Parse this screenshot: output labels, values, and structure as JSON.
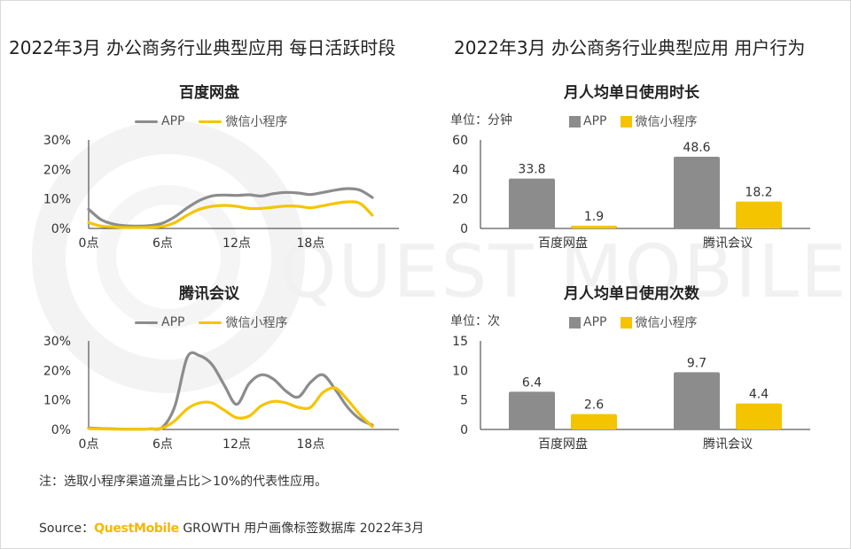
{
  "titles": {
    "left": "2022年3月 办公商务行业典型应用 每日活跃时段",
    "right": "2022年3月 办公商务行业典型应用 用户行为"
  },
  "legend": {
    "app": "APP",
    "mini": "微信小程序"
  },
  "colors": {
    "app": "#8c8c8c",
    "mini": "#f5c400",
    "axis": "#333333"
  },
  "watermark": "QUEST MOBILE",
  "units": {
    "duration": "单位：分钟",
    "count": "单位：次"
  },
  "note": "注：选取小程序渠道流量占比＞10%的代表性应用。",
  "source": {
    "prefix": "Source：",
    "brand": "QuestMobile",
    "text": "GROWTH 用户画像标签数据库 2022年3月"
  },
  "chart_data": [
    {
      "type": "line",
      "title": "百度网盘",
      "x": [
        0,
        1,
        2,
        3,
        4,
        5,
        6,
        7,
        8,
        9,
        10,
        11,
        12,
        13,
        14,
        15,
        16,
        17,
        18,
        19,
        20,
        21,
        22,
        23
      ],
      "x_tick_labels": [
        "0点",
        "6点",
        "12点",
        "18点"
      ],
      "x_tick_positions": [
        0,
        6,
        12,
        18
      ],
      "y_ticks": [
        "0%",
        "10%",
        "20%",
        "30%"
      ],
      "ylim": [
        0,
        30
      ],
      "series": [
        {
          "name": "APP",
          "values": [
            6.5,
            3.0,
            1.5,
            0.9,
            0.8,
            1.0,
            1.8,
            4.0,
            7.0,
            9.5,
            11.0,
            11.3,
            11.2,
            11.4,
            11.0,
            11.8,
            12.2,
            12.0,
            11.5,
            12.2,
            13.0,
            13.5,
            13.0,
            10.5
          ]
        },
        {
          "name": "微信小程序",
          "values": [
            2.0,
            0.8,
            0.5,
            0.3,
            0.3,
            0.4,
            0.7,
            2.0,
            4.5,
            6.5,
            7.5,
            7.8,
            7.5,
            6.8,
            6.8,
            7.2,
            7.6,
            7.5,
            7.0,
            7.7,
            8.5,
            9.0,
            8.5,
            4.5
          ]
        }
      ]
    },
    {
      "type": "line",
      "title": "腾讯会议",
      "x": [
        0,
        1,
        2,
        3,
        4,
        5,
        6,
        7,
        8,
        9,
        10,
        11,
        12,
        13,
        14,
        15,
        16,
        17,
        18,
        19,
        20,
        21,
        22,
        23
      ],
      "x_tick_labels": [
        "0点",
        "6点",
        "12点",
        "18点"
      ],
      "x_tick_positions": [
        0,
        6,
        12,
        18
      ],
      "y_ticks": [
        "0%",
        "10%",
        "20%",
        "30%"
      ],
      "ylim": [
        0,
        30
      ],
      "series": [
        {
          "name": "APP",
          "values": [
            0.5,
            0.3,
            0.2,
            0.1,
            0.1,
            0.2,
            0.8,
            8.0,
            24.5,
            25.0,
            22.0,
            15.0,
            8.5,
            15.5,
            18.5,
            17.0,
            13.0,
            11.0,
            16.0,
            18.5,
            13.5,
            7.5,
            3.5,
            1.5
          ]
        },
        {
          "name": "微信小程序",
          "values": [
            0.3,
            0.2,
            0.1,
            0.1,
            0.1,
            0.2,
            0.5,
            3.0,
            7.0,
            9.0,
            9.0,
            6.5,
            4.0,
            4.5,
            8.0,
            9.5,
            9.0,
            7.5,
            7.5,
            12.5,
            14.0,
            10.0,
            5.0,
            1.0
          ]
        }
      ]
    },
    {
      "type": "bar",
      "title": "月人均单日使用时长",
      "categories": [
        "百度网盘",
        "腾讯会议"
      ],
      "series": [
        {
          "name": "APP",
          "values": [
            33.8,
            48.6
          ]
        },
        {
          "name": "微信小程序",
          "values": [
            1.9,
            18.2
          ]
        }
      ],
      "y_ticks": [
        "0",
        "20",
        "40",
        "60"
      ],
      "ylim": [
        0,
        60
      ]
    },
    {
      "type": "bar",
      "title": "月人均单日使用次数",
      "categories": [
        "百度网盘",
        "腾讯会议"
      ],
      "series": [
        {
          "name": "APP",
          "values": [
            6.4,
            9.7
          ]
        },
        {
          "name": "微信小程序",
          "values": [
            2.6,
            4.4
          ]
        }
      ],
      "y_ticks": [
        "0",
        "5",
        "10",
        "15"
      ],
      "ylim": [
        0,
        15
      ]
    }
  ]
}
